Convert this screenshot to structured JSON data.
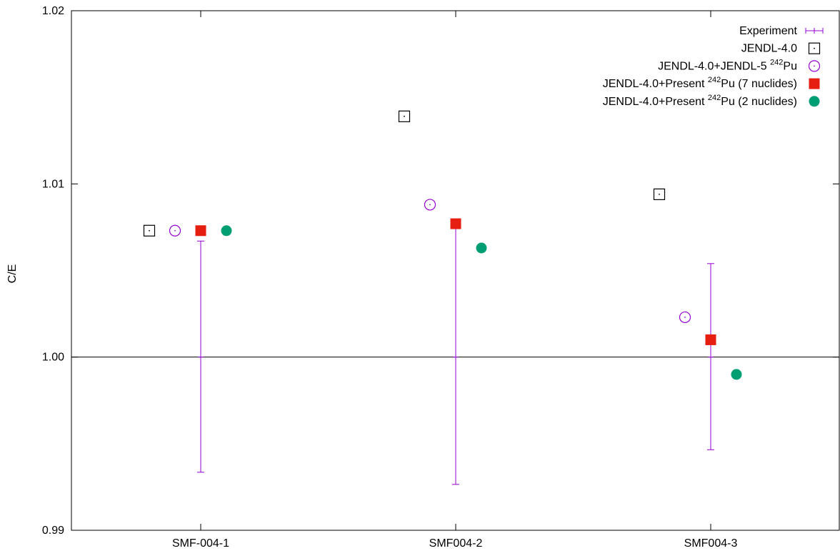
{
  "chart_data": {
    "type": "scatter",
    "ylabel": "C/E",
    "xlabel": "",
    "ylim": [
      0.99,
      1.02
    ],
    "yticks": [
      "0.99",
      "1.00",
      "1.01",
      "1.02"
    ],
    "yticks_values": [
      0.99,
      1.0,
      1.01,
      1.02
    ],
    "categories": [
      "SMF-004-1",
      "SMF004-2",
      "SMF004-3"
    ],
    "reference_line": 1.0,
    "legend_position": "top-right",
    "experiment": {
      "name": "Experiment",
      "values": [
        1.0,
        1.0,
        1.0
      ],
      "error_low": [
        0.99335,
        0.99265,
        0.99465
      ],
      "error_high": [
        1.0067,
        1.0075,
        1.0054
      ],
      "color": "#9400d3"
    },
    "series": [
      {
        "name_parts": [
          "JENDL-4.0",
          "",
          ""
        ],
        "marker": "open-square",
        "color": "#000000",
        "values": [
          1.0073,
          1.0139,
          1.0094
        ]
      },
      {
        "name_parts": [
          "JENDL-4.0+JENDL-5 ",
          "242",
          "Pu"
        ],
        "marker": "open-circle",
        "color": "#9400d3",
        "values": [
          1.0073,
          1.0088,
          1.0023
        ]
      },
      {
        "name_parts": [
          "JENDL-4.0+Present ",
          "242",
          "Pu (7 nuclides)"
        ],
        "marker": "filled-square",
        "color": "#e51e10",
        "values": [
          1.0073,
          1.0077,
          1.001
        ]
      },
      {
        "name_parts": [
          "JENDL-4.0+Present ",
          "242",
          "Pu (2 nuclides)"
        ],
        "marker": "filled-circle",
        "color": "#009e73",
        "values": [
          1.0073,
          1.0063,
          0.999
        ]
      }
    ]
  }
}
